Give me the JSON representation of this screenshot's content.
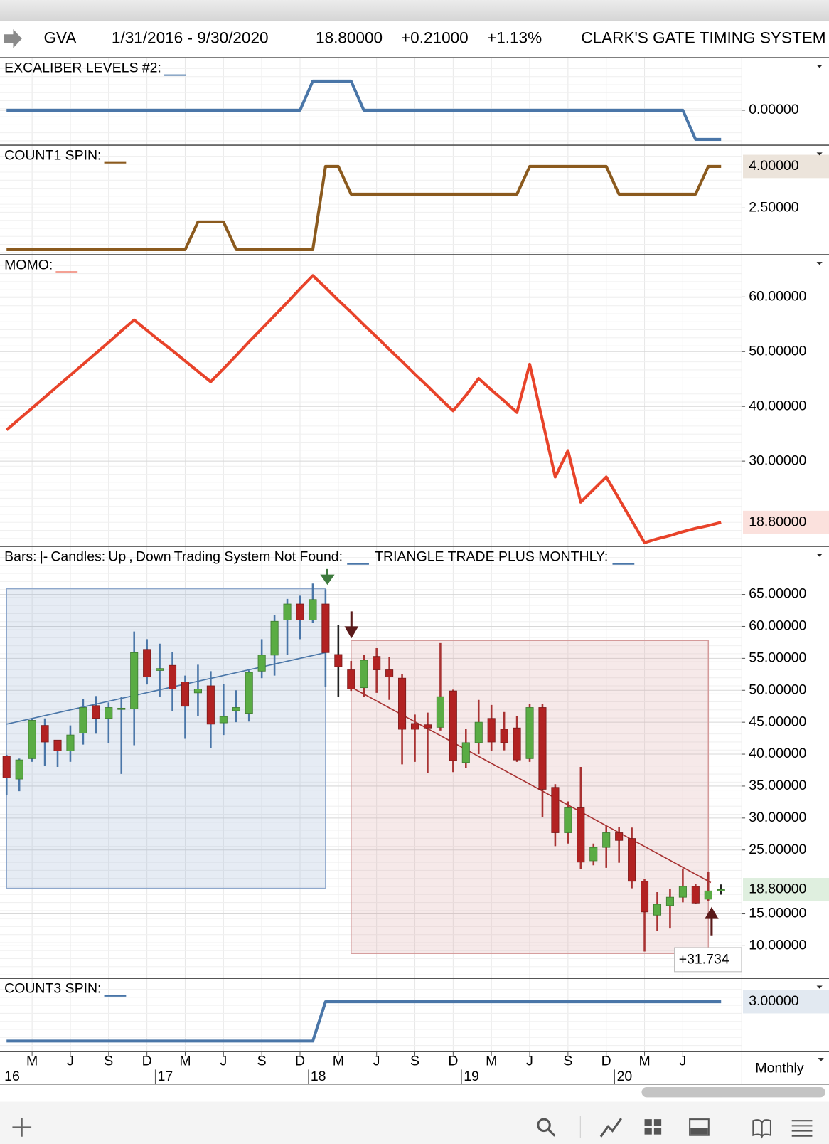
{
  "header": {
    "symbol": "GVA",
    "date_range": "1/31/2016 - 9/30/2020",
    "last": "18.80000",
    "change": "+0.21000",
    "change_pct": "+1.13%",
    "system": "CLARK'S GATE TIMING SYSTEM"
  },
  "x_axis": {
    "categories": [
      null,
      null,
      "M",
      null,
      null,
      "J",
      null,
      null,
      "S",
      null,
      null,
      "D",
      null,
      null,
      "M",
      null,
      null,
      "J",
      null,
      null,
      "S",
      null,
      null,
      "D",
      null,
      null,
      "M",
      null,
      null,
      "J",
      null,
      null,
      "S",
      null,
      null,
      "D",
      null,
      null,
      "M",
      null,
      null,
      "J",
      null,
      null,
      "S",
      null,
      null,
      "D",
      null,
      null,
      "M",
      null,
      null,
      "J",
      null,
      null,
      null
    ],
    "year_labels": [
      "16",
      null,
      null,
      null,
      null,
      null,
      null,
      null,
      null,
      null,
      null,
      null,
      "17",
      null,
      null,
      null,
      null,
      null,
      null,
      null,
      null,
      null,
      null,
      null,
      "18",
      null,
      null,
      null,
      null,
      null,
      null,
      null,
      null,
      null,
      null,
      null,
      "19",
      null,
      null,
      null,
      null,
      null,
      null,
      null,
      null,
      null,
      null,
      null,
      "20",
      null,
      null,
      null,
      null,
      null,
      null,
      null,
      null
    ]
  },
  "chart_data": [
    {
      "type": "line",
      "title": "EXCALIBER LEVELS #2:",
      "color": "#4a76a8",
      "values": [
        0,
        0,
        0,
        0,
        0,
        0,
        0,
        0,
        0,
        0,
        0,
        0,
        0,
        0,
        0,
        0,
        0,
        0,
        0,
        0,
        0,
        0,
        0,
        0,
        1,
        1,
        1,
        1,
        0,
        0,
        0,
        0,
        0,
        0,
        0,
        0,
        0,
        0,
        0,
        0,
        0,
        0,
        0,
        0,
        0,
        0,
        0,
        0,
        0,
        0,
        0,
        0,
        0,
        0,
        -1,
        -1,
        -1
      ],
      "ylim": [
        -1.2,
        1.78
      ],
      "yticks": [
        {
          "value": 0,
          "label": "0.00000"
        }
      ]
    },
    {
      "type": "line",
      "title": "COUNT1 SPIN:",
      "color": "#8b5a1e",
      "values": [
        1,
        1,
        1,
        1,
        1,
        1,
        1,
        1,
        1,
        1,
        1,
        1,
        1,
        1,
        1,
        2,
        2,
        2,
        1,
        1,
        1,
        1,
        1,
        1,
        1,
        4,
        4,
        3,
        3,
        3,
        3,
        3,
        3,
        3,
        3,
        3,
        3,
        3,
        3,
        3,
        3,
        4,
        4,
        4,
        4,
        4,
        4,
        4,
        3,
        3,
        3,
        3,
        3,
        3,
        3,
        4,
        4
      ],
      "ylim": [
        0.82,
        4.74
      ],
      "yticks": [
        {
          "value": 2.5,
          "label": "2.50000"
        }
      ],
      "last_label": "4.00000"
    },
    {
      "type": "line",
      "title": "MOMO:",
      "color": "#e8432a",
      "values": [
        35.7,
        37.7,
        39.7,
        41.7,
        43.7,
        45.7,
        47.7,
        49.7,
        51.7,
        53.8,
        55.8,
        53.9,
        52.0,
        50.2,
        48.3,
        46.4,
        44.5,
        46.9,
        49.3,
        51.8,
        54.2,
        56.6,
        59.0,
        61.5,
        63.9,
        61.7,
        59.4,
        57.2,
        54.9,
        52.7,
        50.4,
        48.2,
        45.9,
        43.7,
        41.4,
        39.2,
        42.0,
        45.1,
        43.0,
        41.0,
        38.9,
        47.7,
        37.4,
        27.1,
        31.9,
        22.5,
        24.8,
        27.1,
        23.1,
        19.1,
        15.1,
        15.8,
        16.4,
        17.1,
        17.7,
        18.2,
        18.8
      ],
      "ylim": [
        14.4,
        67.6
      ],
      "yticks": [
        {
          "value": 60,
          "label": "60.00000"
        },
        {
          "value": 50,
          "label": "50.00000"
        },
        {
          "value": 40,
          "label": "40.00000"
        },
        {
          "value": 30,
          "label": "30.00000"
        }
      ],
      "last_label": "18.80000"
    },
    {
      "type": "candlestick",
      "legend": [
        {
          "text": "Bars:",
          "color": "#000000"
        },
        {
          "text": "|-",
          "color": "#3a9a3a"
        },
        {
          "text": "Candles:",
          "color": "#000000"
        },
        {
          "text": "Up",
          "color": "#3a9a3a"
        },
        {
          "text": ",",
          "color": "#000000"
        },
        {
          "text": "Down",
          "color": "#b22222"
        },
        {
          "text": "Trading System Not Found:",
          "color": "#000000",
          "swatch": "#4a76a8"
        },
        {
          "text": "TRIANGLE TRADE PLUS MONTHLY:",
          "color": "#000000",
          "swatch": "#4a76a8"
        }
      ],
      "up_color": "#5aac44",
      "down_color": "#b22222",
      "color": "#3a9a3a",
      "open": [
        39.7,
        36.1,
        39.3,
        44.5,
        42.2,
        40.5,
        43.3,
        47.6,
        45.6,
        47.0,
        47.1,
        56.4,
        53.1,
        53.9,
        51.3,
        49.6,
        50.7,
        44.9,
        46.8,
        46.4,
        53.0,
        55.5,
        61.0,
        63.5,
        61.0,
        63.5,
        55.6,
        53.2,
        50.4,
        55.3,
        53.2,
        51.9,
        44.8,
        44.6,
        44.2,
        49.9,
        38.7,
        41.8,
        45.6,
        43.9,
        44.1,
        39.3,
        47.3,
        34.8,
        27.7,
        31.6,
        23.3,
        25.4,
        27.7,
        26.8,
        20.1,
        14.8,
        16.3,
        17.6,
        19.3,
        17.3,
        18.59
      ],
      "high": [
        39.9,
        39.3,
        45.5,
        45.6,
        42.2,
        44.5,
        48.6,
        49.1,
        48.1,
        49.0,
        59.2,
        58.0,
        57.3,
        56.0,
        52.3,
        54.0,
        53.0,
        51.0,
        50.0,
        53.1,
        58.0,
        61.8,
        64.3,
        64.8,
        66.7,
        65.8,
        60.2,
        54.6,
        55.5,
        56.6,
        55.2,
        52.5,
        46.2,
        46.5,
        57.4,
        50.1,
        44.0,
        48.5,
        47.7,
        46.6,
        46.0,
        47.8,
        47.9,
        35.3,
        32.6,
        38.0,
        26.0,
        28.8,
        28.6,
        28.5,
        20.5,
        18.4,
        18.9,
        22.1,
        19.7,
        21.6,
        19.6
      ],
      "low": [
        33.6,
        34.2,
        38.8,
        38.2,
        38.0,
        38.8,
        41.5,
        43.2,
        41.7,
        36.9,
        41.4,
        50.9,
        49.0,
        46.7,
        42.4,
        46.0,
        41.0,
        43.0,
        45.0,
        45.1,
        51.9,
        52.3,
        55.5,
        58.0,
        60.5,
        50.5,
        49.0,
        49.9,
        49.0,
        49.6,
        48.5,
        38.4,
        38.8,
        37.1,
        43.7,
        37.2,
        37.8,
        40.0,
        40.5,
        40.6,
        38.8,
        38.8,
        30.2,
        25.6,
        26.0,
        22.0,
        22.6,
        22.2,
        23.0,
        19.0,
        9.1,
        12.3,
        12.7,
        16.8,
        16.5,
        17.0,
        18.0
      ],
      "close": [
        36.3,
        39.1,
        45.3,
        41.9,
        40.5,
        43.0,
        47.3,
        45.6,
        47.3,
        47.2,
        55.9,
        52.1,
        53.4,
        50.2,
        47.5,
        50.2,
        44.7,
        45.9,
        47.3,
        52.8,
        55.5,
        60.8,
        63.5,
        61.0,
        64.2,
        55.9,
        53.7,
        50.2,
        54.7,
        53.2,
        52.1,
        43.9,
        43.9,
        44.1,
        49.0,
        39.0,
        41.8,
        45.0,
        41.9,
        41.8,
        39.1,
        47.3,
        34.5,
        27.7,
        31.6,
        23.1,
        25.4,
        27.7,
        26.5,
        20.1,
        15.3,
        16.5,
        17.6,
        19.3,
        16.7,
        18.59,
        18.8
      ],
      "boxes": [
        {
          "x": [
            0,
            25
          ],
          "values": [
            65.9,
            19.0
          ],
          "color": "#8fa8cc"
        },
        {
          "x": [
            27,
            55
          ],
          "values": [
            57.8,
            8.8
          ],
          "color": "#d49a9a",
          "value": 31.734,
          "value_label": "+31.734"
        }
      ],
      "trendlines": [
        {
          "x": [
            0,
            25
          ],
          "values": [
            44.7,
            55.9
          ],
          "color": "#4a76a8"
        },
        {
          "x": [
            27,
            55.2
          ],
          "values": [
            50.5,
            19.9
          ],
          "color": "#a83232"
        }
      ],
      "ylim": [
        4.9,
        72.4
      ],
      "yticks": [
        {
          "value": 65,
          "label": "65.00000"
        },
        {
          "value": 60,
          "label": "60.00000"
        },
        {
          "value": 55,
          "label": "55.00000"
        },
        {
          "value": 50,
          "label": "50.00000"
        },
        {
          "value": 45,
          "label": "45.00000"
        },
        {
          "value": 40,
          "label": "40.00000"
        },
        {
          "value": 35,
          "label": "35.00000"
        },
        {
          "value": 30,
          "label": "30.00000"
        },
        {
          "value": 25,
          "label": "25.00000"
        },
        {
          "value": 15,
          "label": "15.00000"
        },
        {
          "value": 10,
          "label": "10.00000"
        }
      ],
      "last_label": "18.80000"
    },
    {
      "type": "line",
      "title": "COUNT3 SPIN:",
      "color": "#4a76a8",
      "values": [
        1,
        1,
        1,
        1,
        1,
        1,
        1,
        1,
        1,
        1,
        1,
        1,
        1,
        1,
        1,
        1,
        1,
        1,
        1,
        1,
        1,
        1,
        1,
        1,
        1,
        3,
        3,
        3,
        3,
        3,
        3,
        3,
        3,
        3,
        3,
        3,
        3,
        3,
        3,
        3,
        3,
        3,
        3,
        3,
        3,
        3,
        3,
        3,
        3,
        3,
        3,
        3,
        3,
        3,
        3,
        3,
        3
      ],
      "ylim": [
        0.48,
        4.15
      ],
      "yticks": [],
      "last_label": "3.00000"
    }
  ],
  "footer": {
    "period": "Monthly"
  }
}
